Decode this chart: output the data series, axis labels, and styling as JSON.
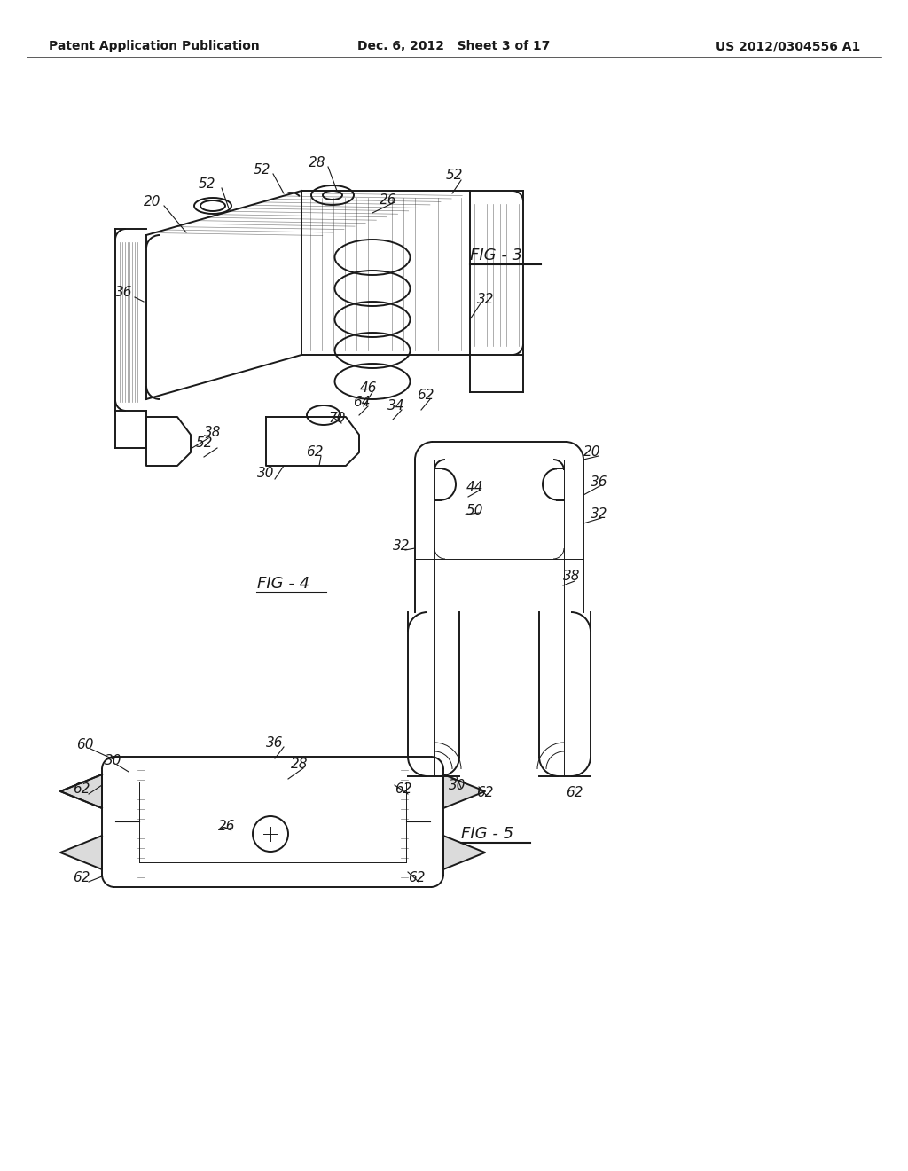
{
  "background_color": "#ffffff",
  "header_left": "Patent Application Publication",
  "header_center": "Dec. 6, 2012   Sheet 3 of 17",
  "header_right": "US 2012/0304556 A1",
  "line_color": "#1a1a1a",
  "line_width": 1.4,
  "thin_line": 0.7,
  "label_fontsize": 11,
  "header_fontsize": 10,
  "fig_label_fontsize": 13,
  "fig3_label": "FIG - 3",
  "fig4_label": "FIG - 4",
  "fig5_label": "FIG - 5"
}
